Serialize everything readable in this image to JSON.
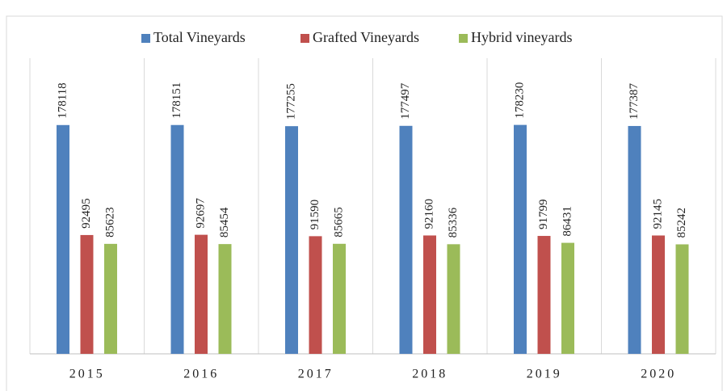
{
  "chart_data": {
    "type": "bar",
    "categories": [
      "2015",
      "2016",
      "2017",
      "2018",
      "2019",
      "2020"
    ],
    "series": [
      {
        "name": "Total Vineyards",
        "color": "#4f81bd",
        "values": [
          178118,
          178151,
          177255,
          177497,
          178230,
          177387
        ]
      },
      {
        "name": "Grafted Vineyards",
        "color": "#c0504d",
        "values": [
          92495,
          92697,
          91590,
          92160,
          91799,
          92145
        ]
      },
      {
        "name": "Hybrid vineyards",
        "color": "#9bbb59",
        "values": [
          85623,
          85454,
          85665,
          85336,
          86431,
          85242
        ]
      }
    ],
    "ylim": [
      0,
      200000
    ],
    "legend": "top"
  }
}
